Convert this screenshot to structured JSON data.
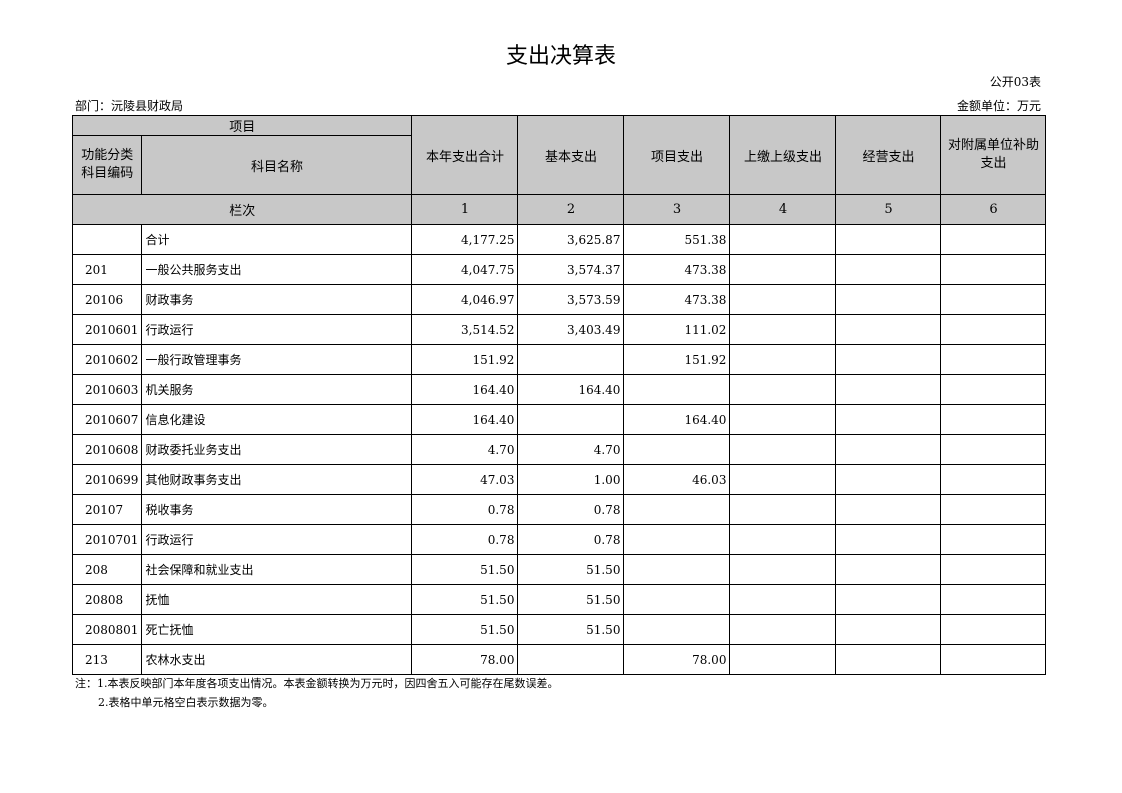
{
  "title": "支出决算表",
  "table_code": "公开03表",
  "department": "部门：沅陵县财政局",
  "unit": "金额单位：万元",
  "headers": {
    "project": "项目",
    "code": "功能分类科目编码",
    "name": "科目名称",
    "cols": [
      "本年支出合计",
      "基本支出",
      "项目支出",
      "上缴上级支出",
      "经营支出",
      "对附属单位补助支出"
    ],
    "column_index_label": "栏次",
    "column_numbers": [
      "1",
      "2",
      "3",
      "4",
      "5",
      "6"
    ]
  },
  "rows": [
    {
      "code": "",
      "name": "合计",
      "values": [
        "4,177.25",
        "3,625.87",
        "551.38",
        "",
        "",
        ""
      ]
    },
    {
      "code": "201",
      "name": "一般公共服务支出",
      "values": [
        "4,047.75",
        "3,574.37",
        "473.38",
        "",
        "",
        ""
      ]
    },
    {
      "code": "20106",
      "name": "财政事务",
      "values": [
        "4,046.97",
        "3,573.59",
        "473.38",
        "",
        "",
        ""
      ]
    },
    {
      "code": "2010601",
      "name": "行政运行",
      "values": [
        "3,514.52",
        "3,403.49",
        "111.02",
        "",
        "",
        ""
      ]
    },
    {
      "code": "2010602",
      "name": "一般行政管理事务",
      "values": [
        "151.92",
        "",
        "151.92",
        "",
        "",
        ""
      ]
    },
    {
      "code": "2010603",
      "name": "机关服务",
      "values": [
        "164.40",
        "164.40",
        "",
        "",
        "",
        ""
      ]
    },
    {
      "code": "2010607",
      "name": "信息化建设",
      "values": [
        "164.40",
        "",
        "164.40",
        "",
        "",
        ""
      ]
    },
    {
      "code": "2010608",
      "name": "财政委托业务支出",
      "values": [
        "4.70",
        "4.70",
        "",
        "",
        "",
        ""
      ]
    },
    {
      "code": "2010699",
      "name": "其他财政事务支出",
      "values": [
        "47.03",
        "1.00",
        "46.03",
        "",
        "",
        ""
      ]
    },
    {
      "code": "20107",
      "name": "税收事务",
      "values": [
        "0.78",
        "0.78",
        "",
        "",
        "",
        ""
      ]
    },
    {
      "code": "2010701",
      "name": "行政运行",
      "values": [
        "0.78",
        "0.78",
        "",
        "",
        "",
        ""
      ]
    },
    {
      "code": "208",
      "name": "社会保障和就业支出",
      "values": [
        "51.50",
        "51.50",
        "",
        "",
        "",
        ""
      ]
    },
    {
      "code": "20808",
      "name": "抚恤",
      "values": [
        "51.50",
        "51.50",
        "",
        "",
        "",
        ""
      ]
    },
    {
      "code": "2080801",
      "name": "死亡抚恤",
      "values": [
        "51.50",
        "51.50",
        "",
        "",
        "",
        ""
      ]
    },
    {
      "code": "213",
      "name": "农林水支出",
      "values": [
        "78.00",
        "",
        "78.00",
        "",
        "",
        ""
      ]
    }
  ],
  "notes": [
    "注：1.本表反映部门本年度各项支出情况。本表金额转换为万元时，因四舍五入可能存在尾数误差。",
    "2.表格中单元格空白表示数据为零。"
  ]
}
